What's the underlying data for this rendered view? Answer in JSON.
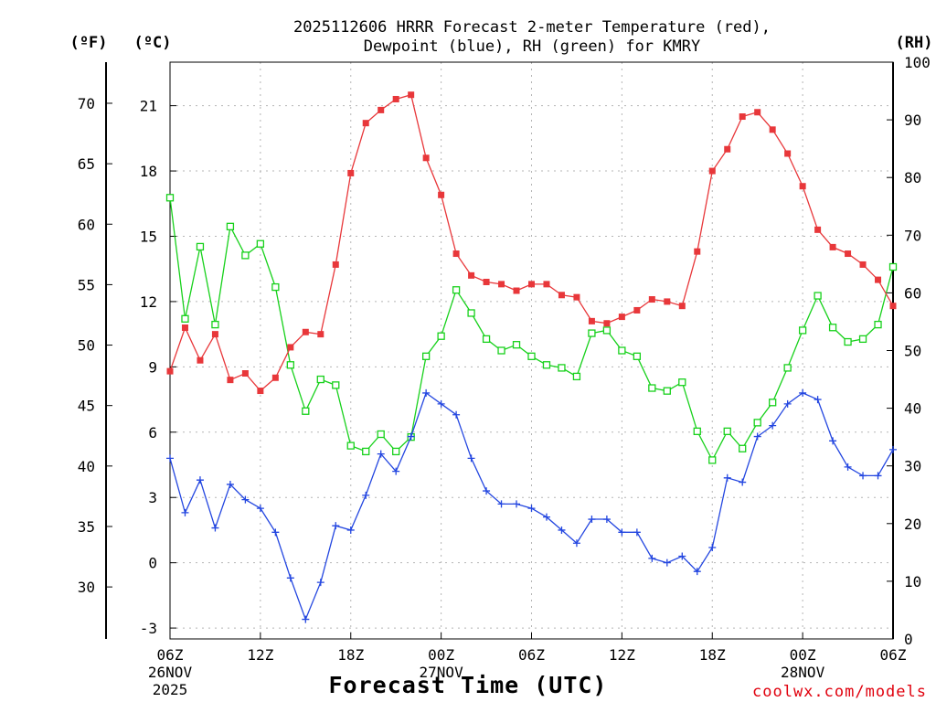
{
  "chart_data": {
    "type": "line",
    "title": {
      "line1": "2025112606 HRRR Forecast 2-meter Temperature (red),",
      "line2": "Dewpoint (blue), RH (green) for KMRY"
    },
    "xlabel": "Forecast Time (UTC)",
    "credit": "coolwx.com/models",
    "axes": {
      "left_f": {
        "unit_label": "(ºF)",
        "ticks": [
          30,
          35,
          40,
          45,
          50,
          55,
          60,
          65,
          70
        ]
      },
      "left_c": {
        "unit_label": "(ºC)",
        "range": [
          -3.5,
          23
        ],
        "ticks": [
          -3,
          0,
          3,
          6,
          9,
          12,
          15,
          18,
          21
        ]
      },
      "right_rh": {
        "unit_label": "(RH)",
        "range": [
          0,
          100
        ],
        "ticks": [
          0,
          10,
          20,
          30,
          40,
          50,
          60,
          70,
          80,
          90,
          100
        ]
      }
    },
    "x_range_hours": [
      0,
      48
    ],
    "x_ticks": [
      {
        "hour": 0,
        "label": "06Z",
        "date": "26NOV",
        "year": "2025"
      },
      {
        "hour": 6,
        "label": "12Z"
      },
      {
        "hour": 12,
        "label": "18Z"
      },
      {
        "hour": 18,
        "label": "00Z",
        "date": "27NOV"
      },
      {
        "hour": 24,
        "label": "06Z"
      },
      {
        "hour": 30,
        "label": "12Z"
      },
      {
        "hour": 36,
        "label": "18Z"
      },
      {
        "hour": 42,
        "label": "00Z",
        "date": "28NOV"
      },
      {
        "hour": 48,
        "label": "06Z"
      }
    ],
    "series": [
      {
        "name": "Temperature (°C)",
        "color": "#e8373a",
        "marker": "filled-square",
        "axis": "left_c",
        "values": [
          8.8,
          10.8,
          9.3,
          10.5,
          8.4,
          8.7,
          7.9,
          8.5,
          9.9,
          10.6,
          10.5,
          13.7,
          17.9,
          20.2,
          20.8,
          21.3,
          21.5,
          18.6,
          16.9,
          14.2,
          13.2,
          12.9,
          12.8,
          12.5,
          12.8,
          12.8,
          12.3,
          12.2,
          11.1,
          11.0,
          11.3,
          11.6,
          12.1,
          12.0,
          11.8,
          14.3,
          18.0,
          19.0,
          20.5,
          20.7,
          19.9,
          18.8,
          17.3,
          15.3,
          14.5,
          14.2,
          13.7,
          13.0,
          11.8
        ]
      },
      {
        "name": "Dewpoint (°C)",
        "color": "#2346e0",
        "marker": "plus",
        "axis": "left_c",
        "values": [
          4.8,
          2.3,
          3.8,
          1.6,
          3.6,
          2.9,
          2.5,
          1.4,
          -0.7,
          -2.6,
          -0.9,
          1.7,
          1.5,
          3.1,
          5.0,
          4.2,
          5.8,
          7.8,
          7.3,
          6.8,
          4.8,
          3.3,
          2.7,
          2.7,
          2.5,
          2.1,
          1.5,
          0.9,
          2.0,
          2.0,
          1.4,
          1.4,
          0.2,
          0.0,
          0.3,
          -0.4,
          0.7,
          3.9,
          3.7,
          5.8,
          6.3,
          7.3,
          7.8,
          7.5,
          5.6,
          4.4,
          4.0,
          4.0,
          5.2
        ]
      },
      {
        "name": "RH (%)",
        "color": "#17d11b",
        "marker": "open-square",
        "axis": "right_rh",
        "values": [
          76.5,
          55.5,
          68.0,
          54.5,
          71.5,
          66.5,
          68.5,
          61.0,
          47.5,
          39.5,
          45.0,
          44.0,
          33.5,
          32.5,
          35.5,
          32.5,
          35.0,
          49.0,
          52.5,
          60.5,
          56.5,
          52.0,
          50.0,
          51.0,
          49.0,
          47.5,
          47.0,
          45.5,
          53.0,
          53.5,
          50.0,
          49.0,
          43.5,
          43.0,
          44.5,
          36.0,
          31.0,
          36.0,
          33.0,
          37.5,
          41.0,
          47.0,
          53.5,
          59.5,
          54.0,
          51.5,
          52.0,
          54.5,
          64.5
        ]
      }
    ],
    "grid": true
  }
}
